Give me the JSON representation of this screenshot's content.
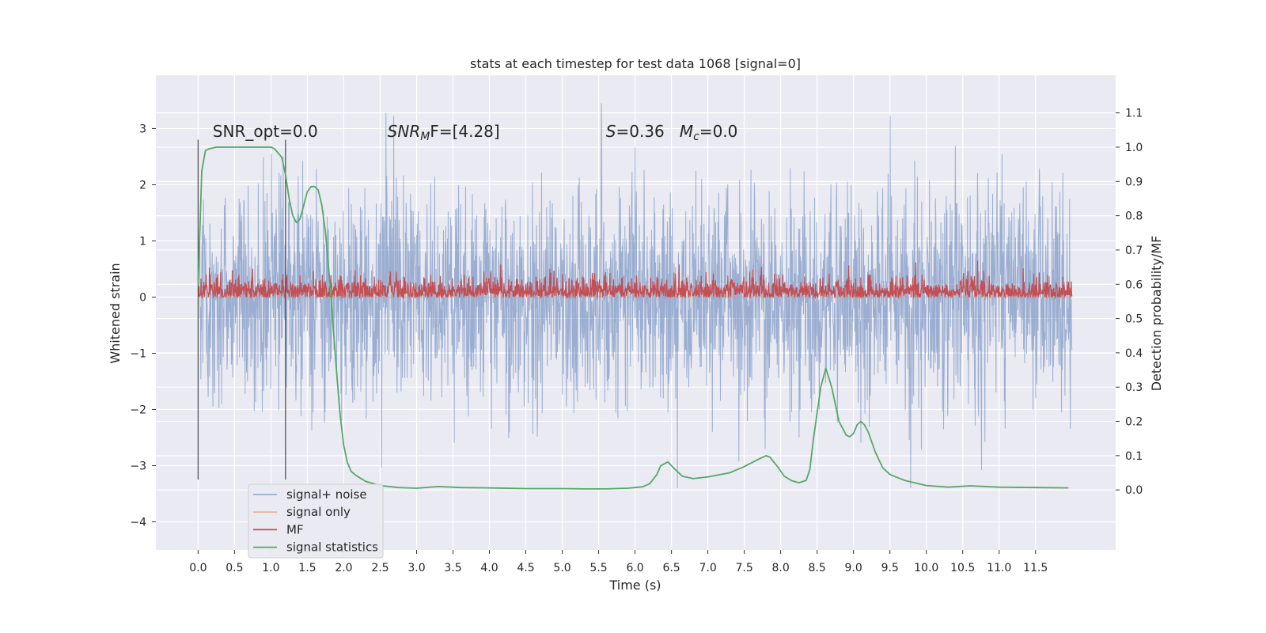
{
  "chart_data": {
    "type": "line",
    "title": "stats at each timestep for test data 1068 [signal=0]",
    "xlabel": "Time (s)",
    "ylabel": "Whitened strain",
    "y2label": "Detection probability/MF",
    "xlim": [
      -0.58,
      12.6
    ],
    "ylim": [
      -4.5,
      3.95
    ],
    "y2lim": [
      -0.175,
      1.21
    ],
    "x_ticks": [
      0.0,
      0.5,
      1.0,
      1.5,
      2.0,
      2.5,
      3.0,
      3.5,
      4.0,
      4.5,
      5.0,
      5.5,
      6.0,
      6.5,
      7.0,
      7.5,
      8.0,
      8.5,
      9.0,
      9.5,
      10.0,
      10.5,
      11.0,
      11.5
    ],
    "y_ticks": [
      3,
      2,
      1,
      0,
      -1,
      -2,
      -3,
      -4
    ],
    "y2_ticks": [
      1.1,
      1.0,
      0.9,
      0.8,
      0.7,
      0.6,
      0.5,
      0.4,
      0.3,
      0.2,
      0.1,
      0.0
    ],
    "grid": true,
    "legend_position": "lower-left",
    "annotations": [
      {
        "text": "SNR_opt=0.0",
        "x": 0.2,
        "y": 2.85
      },
      {
        "text": "SNR_MF=[4.28]",
        "x": 2.6,
        "y": 2.85
      },
      {
        "text": "S=0.36   M_c=0.0",
        "x": 5.6,
        "y": 2.85
      }
    ],
    "vlines": [
      0.0,
      1.2
    ],
    "series": [
      {
        "name": "signal+ noise",
        "color": "#4c72b0",
        "alpha": 0.5,
        "axis": "left",
        "x_range": [
          0.0,
          12.0
        ],
        "amplitude_band": [
          -1.6,
          1.6
        ],
        "peak_range": [
          -3.4,
          3.45
        ]
      },
      {
        "name": "signal only",
        "color": "#dd8452",
        "alpha": 0.5,
        "axis": "left",
        "x": [
          0.0,
          12.0
        ],
        "y": [
          0.0,
          0.0
        ]
      },
      {
        "name": "MF",
        "color": "#c44e52",
        "axis": "right",
        "x_range": [
          0.0,
          12.0
        ],
        "base": 0.56,
        "band": [
          0.56,
          0.7
        ]
      },
      {
        "name": "signal statistics",
        "color": "#55a868",
        "axis": "right",
        "x": [
          0.0,
          0.05,
          0.1,
          0.15,
          0.25,
          0.4,
          0.6,
          0.8,
          1.0,
          1.05,
          1.15,
          1.2,
          1.25,
          1.3,
          1.35,
          1.4,
          1.45,
          1.5,
          1.55,
          1.6,
          1.65,
          1.7,
          1.75,
          1.8,
          1.85,
          1.9,
          1.95,
          2.0,
          2.05,
          2.1,
          2.15,
          2.2,
          2.3,
          2.5,
          2.75,
          3.0,
          3.3,
          3.6,
          4.0,
          4.5,
          5.0,
          5.3,
          5.6,
          5.9,
          6.1,
          6.2,
          6.3,
          6.35,
          6.45,
          6.55,
          6.65,
          6.8,
          7.0,
          7.3,
          7.5,
          7.7,
          7.8,
          7.85,
          7.95,
          8.05,
          8.15,
          8.25,
          8.35,
          8.4,
          8.45,
          8.55,
          8.62,
          8.7,
          8.8,
          8.9,
          8.95,
          9.0,
          9.05,
          9.1,
          9.15,
          9.2,
          9.3,
          9.4,
          9.5,
          9.7,
          10.0,
          10.3,
          10.6,
          11.0,
          11.5,
          11.95
        ],
        "y": [
          0.6,
          0.93,
          0.99,
          0.995,
          1.0,
          1.0,
          1.0,
          1.0,
          1.0,
          0.995,
          0.97,
          0.92,
          0.85,
          0.8,
          0.78,
          0.79,
          0.83,
          0.87,
          0.885,
          0.885,
          0.875,
          0.83,
          0.75,
          0.63,
          0.49,
          0.35,
          0.22,
          0.13,
          0.08,
          0.055,
          0.045,
          0.038,
          0.025,
          0.013,
          0.007,
          0.005,
          0.01,
          0.007,
          0.006,
          0.004,
          0.004,
          0.003,
          0.003,
          0.005,
          0.009,
          0.018,
          0.045,
          0.07,
          0.082,
          0.06,
          0.04,
          0.033,
          0.038,
          0.05,
          0.068,
          0.09,
          0.1,
          0.096,
          0.07,
          0.04,
          0.027,
          0.021,
          0.028,
          0.06,
          0.15,
          0.3,
          0.355,
          0.3,
          0.2,
          0.16,
          0.155,
          0.165,
          0.19,
          0.2,
          0.19,
          0.17,
          0.11,
          0.065,
          0.045,
          0.028,
          0.013,
          0.008,
          0.012,
          0.008,
          0.007,
          0.006
        ]
      }
    ]
  }
}
